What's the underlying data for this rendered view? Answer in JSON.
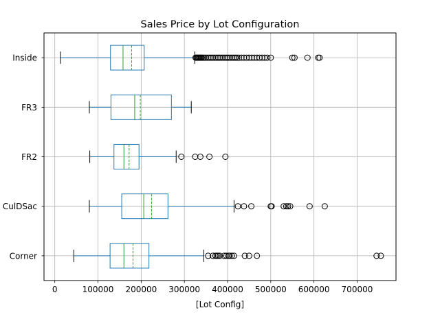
{
  "chart_data": {
    "type": "boxplot",
    "orientation": "horizontal",
    "title": "Sales Price by Lot Configuration",
    "xlabel": "[Lot Config]",
    "ylabel": "",
    "xlim": [
      -25000,
      790000
    ],
    "x_ticks": [
      0,
      100000,
      200000,
      300000,
      400000,
      500000,
      600000,
      700000
    ],
    "x_tick_labels": [
      "0",
      "100000",
      "200000",
      "300000",
      "400000",
      "500000",
      "600000",
      "700000"
    ],
    "categories": [
      "Corner",
      "CulDSac",
      "FR2",
      "FR3",
      "Inside"
    ],
    "grid": true,
    "mean_line": "dashed",
    "colors": {
      "box": "#1f77b4",
      "median": "#2ca02c",
      "mean": "#2ca02c",
      "whisker": "#1f77b4",
      "cap": "#000000",
      "flier": "#000000",
      "grid": "#b0b0b0"
    },
    "boxes": [
      {
        "category": "Corner",
        "whislo": 44000,
        "q1": 128000,
        "med": 160000,
        "mean": 181000,
        "q3": 218000,
        "whishi": 345000,
        "fliers": [
          355000,
          366000,
          372000,
          375000,
          378000,
          382000,
          392000,
          397000,
          402000,
          405000,
          410000,
          415000,
          440000,
          450000,
          468000,
          745000,
          755000
        ]
      },
      {
        "category": "CulDSac",
        "whislo": 80000,
        "q1": 155000,
        "med": 206000,
        "mean": 224000,
        "q3": 262000,
        "whishi": 415000,
        "fliers": [
          424000,
          438000,
          455000,
          500000,
          502000,
          530000,
          536000,
          540000,
          545000,
          590000,
          625000
        ]
      },
      {
        "category": "FR2",
        "whislo": 81000,
        "q1": 137000,
        "med": 160000,
        "mean": 172000,
        "q3": 195000,
        "whishi": 281000,
        "fliers": [
          293000,
          325000,
          337000,
          358000,
          395000
        ]
      },
      {
        "category": "FR3",
        "whislo": 80000,
        "q1": 130000,
        "med": 185000,
        "mean": 198000,
        "q3": 270000,
        "whishi": 316000,
        "fliers": []
      },
      {
        "category": "Inside",
        "whislo": 13000,
        "q1": 129000,
        "med": 158000,
        "mean": 178000,
        "q3": 207000,
        "whishi": 324000,
        "fliers": [
          326000,
          328000,
          330000,
          332000,
          334000,
          336000,
          338000,
          340000,
          343000,
          346000,
          350000,
          354000,
          358000,
          362000,
          366000,
          370000,
          374000,
          378000,
          382000,
          386000,
          390000,
          394000,
          398000,
          402000,
          406000,
          410000,
          414000,
          418000,
          422000,
          426000,
          432000,
          438000,
          444000,
          450000,
          456000,
          462000,
          468000,
          474000,
          480000,
          486000,
          492000,
          500000,
          550000,
          555000,
          585000,
          610000,
          613000
        ]
      }
    ]
  }
}
